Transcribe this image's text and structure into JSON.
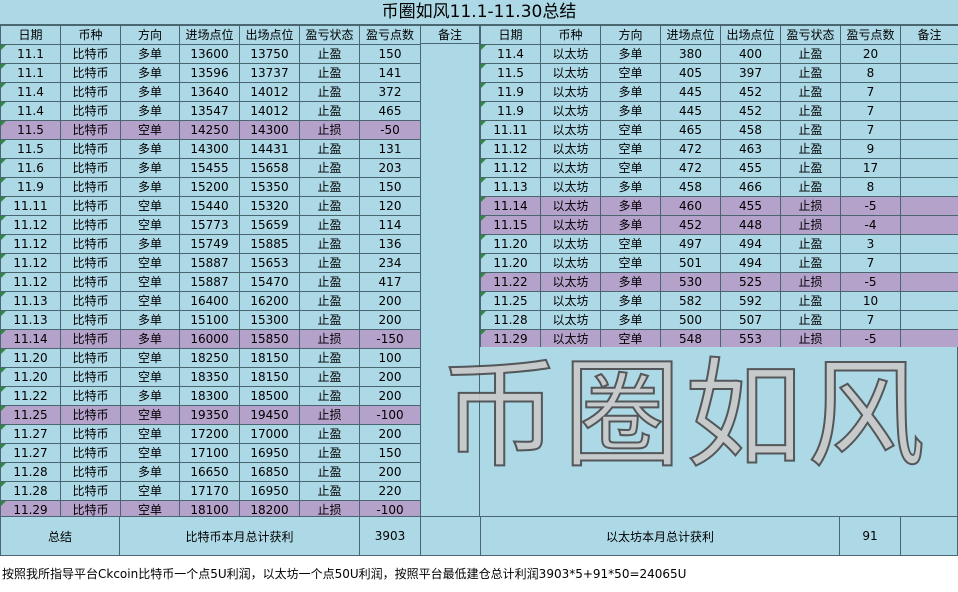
{
  "title": "币圈如风11.1-11.30总结",
  "headers": [
    "日期",
    "币种",
    "方向",
    "进场点位",
    "出场点位",
    "盈亏状态",
    "盈亏点数",
    "备注"
  ],
  "btc_rows": [
    {
      "date": "11.1",
      "coin": "比特币",
      "dir": "多单",
      "entry": "13600",
      "exit": "13750",
      "status": "止盈",
      "points": "150",
      "loss": false
    },
    {
      "date": "11.1",
      "coin": "比特币",
      "dir": "多单",
      "entry": "13596",
      "exit": "13737",
      "status": "止盈",
      "points": "141",
      "loss": false
    },
    {
      "date": "11.4",
      "coin": "比特币",
      "dir": "多单",
      "entry": "13640",
      "exit": "14012",
      "status": "止盈",
      "points": "372",
      "loss": false
    },
    {
      "date": "11.4",
      "coin": "比特币",
      "dir": "多单",
      "entry": "13547",
      "exit": "14012",
      "status": "止盈",
      "points": "465",
      "loss": false
    },
    {
      "date": "11.5",
      "coin": "比特币",
      "dir": "空单",
      "entry": "14250",
      "exit": "14300",
      "status": "止损",
      "points": "-50",
      "loss": true
    },
    {
      "date": "11.5",
      "coin": "比特币",
      "dir": "多单",
      "entry": "14300",
      "exit": "14431",
      "status": "止盈",
      "points": "131",
      "loss": false
    },
    {
      "date": "11.6",
      "coin": "比特币",
      "dir": "多单",
      "entry": "15455",
      "exit": "15658",
      "status": "止盈",
      "points": "203",
      "loss": false
    },
    {
      "date": "11.9",
      "coin": "比特币",
      "dir": "多单",
      "entry": "15200",
      "exit": "15350",
      "status": "止盈",
      "points": "150",
      "loss": false
    },
    {
      "date": "11.11",
      "coin": "比特币",
      "dir": "空单",
      "entry": "15440",
      "exit": "15320",
      "status": "止盈",
      "points": "120",
      "loss": false
    },
    {
      "date": "11.12",
      "coin": "比特币",
      "dir": "空单",
      "entry": "15773",
      "exit": "15659",
      "status": "止盈",
      "points": "114",
      "loss": false
    },
    {
      "date": "11.12",
      "coin": "比特币",
      "dir": "多单",
      "entry": "15749",
      "exit": "15885",
      "status": "止盈",
      "points": "136",
      "loss": false
    },
    {
      "date": "11.12",
      "coin": "比特币",
      "dir": "空单",
      "entry": "15887",
      "exit": "15653",
      "status": "止盈",
      "points": "234",
      "loss": false
    },
    {
      "date": "11.12",
      "coin": "比特币",
      "dir": "空单",
      "entry": "15887",
      "exit": "15470",
      "status": "止盈",
      "points": "417",
      "loss": false
    },
    {
      "date": "11.13",
      "coin": "比特币",
      "dir": "空单",
      "entry": "16400",
      "exit": "16200",
      "status": "止盈",
      "points": "200",
      "loss": false
    },
    {
      "date": "11.13",
      "coin": "比特币",
      "dir": "多单",
      "entry": "15100",
      "exit": "15300",
      "status": "止盈",
      "points": "200",
      "loss": false
    },
    {
      "date": "11.14",
      "coin": "比特币",
      "dir": "多单",
      "entry": "16000",
      "exit": "15850",
      "status": "止损",
      "points": "-150",
      "loss": true
    },
    {
      "date": "11.20",
      "coin": "比特币",
      "dir": "空单",
      "entry": "18250",
      "exit": "18150",
      "status": "止盈",
      "points": "100",
      "loss": false
    },
    {
      "date": "11.20",
      "coin": "比特币",
      "dir": "空单",
      "entry": "18350",
      "exit": "18150",
      "status": "止盈",
      "points": "200",
      "loss": false
    },
    {
      "date": "11.22",
      "coin": "比特币",
      "dir": "多单",
      "entry": "18300",
      "exit": "18500",
      "status": "止盈",
      "points": "200",
      "loss": false
    },
    {
      "date": "11.25",
      "coin": "比特币",
      "dir": "空单",
      "entry": "19350",
      "exit": "19450",
      "status": "止损",
      "points": "-100",
      "loss": true
    },
    {
      "date": "11.27",
      "coin": "比特币",
      "dir": "空单",
      "entry": "17200",
      "exit": "17000",
      "status": "止盈",
      "points": "200",
      "loss": false
    },
    {
      "date": "11.27",
      "coin": "比特币",
      "dir": "空单",
      "entry": "17100",
      "exit": "16950",
      "status": "止盈",
      "points": "150",
      "loss": false
    },
    {
      "date": "11.28",
      "coin": "比特币",
      "dir": "多单",
      "entry": "16650",
      "exit": "16850",
      "status": "止盈",
      "points": "200",
      "loss": false
    },
    {
      "date": "11.28",
      "coin": "比特币",
      "dir": "空单",
      "entry": "17170",
      "exit": "16950",
      "status": "止盈",
      "points": "220",
      "loss": false
    },
    {
      "date": "11.29",
      "coin": "比特币",
      "dir": "空单",
      "entry": "18100",
      "exit": "18200",
      "status": "止损",
      "points": "-100",
      "loss": true
    }
  ],
  "eth_rows": [
    {
      "date": "11.4",
      "coin": "以太坊",
      "dir": "多单",
      "entry": "380",
      "exit": "400",
      "status": "止盈",
      "points": "20",
      "loss": false
    },
    {
      "date": "11.5",
      "coin": "以太坊",
      "dir": "空单",
      "entry": "405",
      "exit": "397",
      "status": "止盈",
      "points": "8",
      "loss": false
    },
    {
      "date": "11.9",
      "coin": "以太坊",
      "dir": "多单",
      "entry": "445",
      "exit": "452",
      "status": "止盈",
      "points": "7",
      "loss": false
    },
    {
      "date": "11.9",
      "coin": "以太坊",
      "dir": "多单",
      "entry": "445",
      "exit": "452",
      "status": "止盈",
      "points": "7",
      "loss": false
    },
    {
      "date": "11.11",
      "coin": "以太坊",
      "dir": "空单",
      "entry": "465",
      "exit": "458",
      "status": "止盈",
      "points": "7",
      "loss": false
    },
    {
      "date": "11.12",
      "coin": "以太坊",
      "dir": "空单",
      "entry": "472",
      "exit": "463",
      "status": "止盈",
      "points": "9",
      "loss": false
    },
    {
      "date": "11.12",
      "coin": "以太坊",
      "dir": "空单",
      "entry": "472",
      "exit": "455",
      "status": "止盈",
      "points": "17",
      "loss": false
    },
    {
      "date": "11.13",
      "coin": "以太坊",
      "dir": "多单",
      "entry": "458",
      "exit": "466",
      "status": "止盈",
      "points": "8",
      "loss": false
    },
    {
      "date": "11.14",
      "coin": "以太坊",
      "dir": "多单",
      "entry": "460",
      "exit": "455",
      "status": "止损",
      "points": "-5",
      "loss": true
    },
    {
      "date": "11.15",
      "coin": "以太坊",
      "dir": "多单",
      "entry": "452",
      "exit": "448",
      "status": "止损",
      "points": "-4",
      "loss": true
    },
    {
      "date": "11.20",
      "coin": "以太坊",
      "dir": "空单",
      "entry": "497",
      "exit": "494",
      "status": "止盈",
      "points": "3",
      "loss": false
    },
    {
      "date": "11.20",
      "coin": "以太坊",
      "dir": "空单",
      "entry": "501",
      "exit": "494",
      "status": "止盈",
      "points": "7",
      "loss": false
    },
    {
      "date": "11.22",
      "coin": "以太坊",
      "dir": "多单",
      "entry": "530",
      "exit": "525",
      "status": "止损",
      "points": "-5",
      "loss": true
    },
    {
      "date": "11.25",
      "coin": "以太坊",
      "dir": "多单",
      "entry": "582",
      "exit": "592",
      "status": "止盈",
      "points": "10",
      "loss": false
    },
    {
      "date": "11.28",
      "coin": "以太坊",
      "dir": "多单",
      "entry": "500",
      "exit": "507",
      "status": "止盈",
      "points": "7",
      "loss": false
    },
    {
      "date": "11.29",
      "coin": "以太坊",
      "dir": "空单",
      "entry": "548",
      "exit": "553",
      "status": "止损",
      "points": "-5",
      "loss": true
    }
  ],
  "summary": {
    "total_label": "总结",
    "btc_label": "比特币本月总计获利",
    "btc_total": "3903",
    "eth_label": "以太坊本月总计获利",
    "eth_total": "91"
  },
  "watermark": "币圈如风",
  "footer": "按照我所指导平台Ckcoin比特币一个点5U利润，以太坊一个点50U利润，按照平台最低建仓总计利润3903*5+91*50=24065U",
  "colors": {
    "profit_row": "#add8e6",
    "loss_row": "#b4a2cb",
    "grid": "#4a6670"
  }
}
